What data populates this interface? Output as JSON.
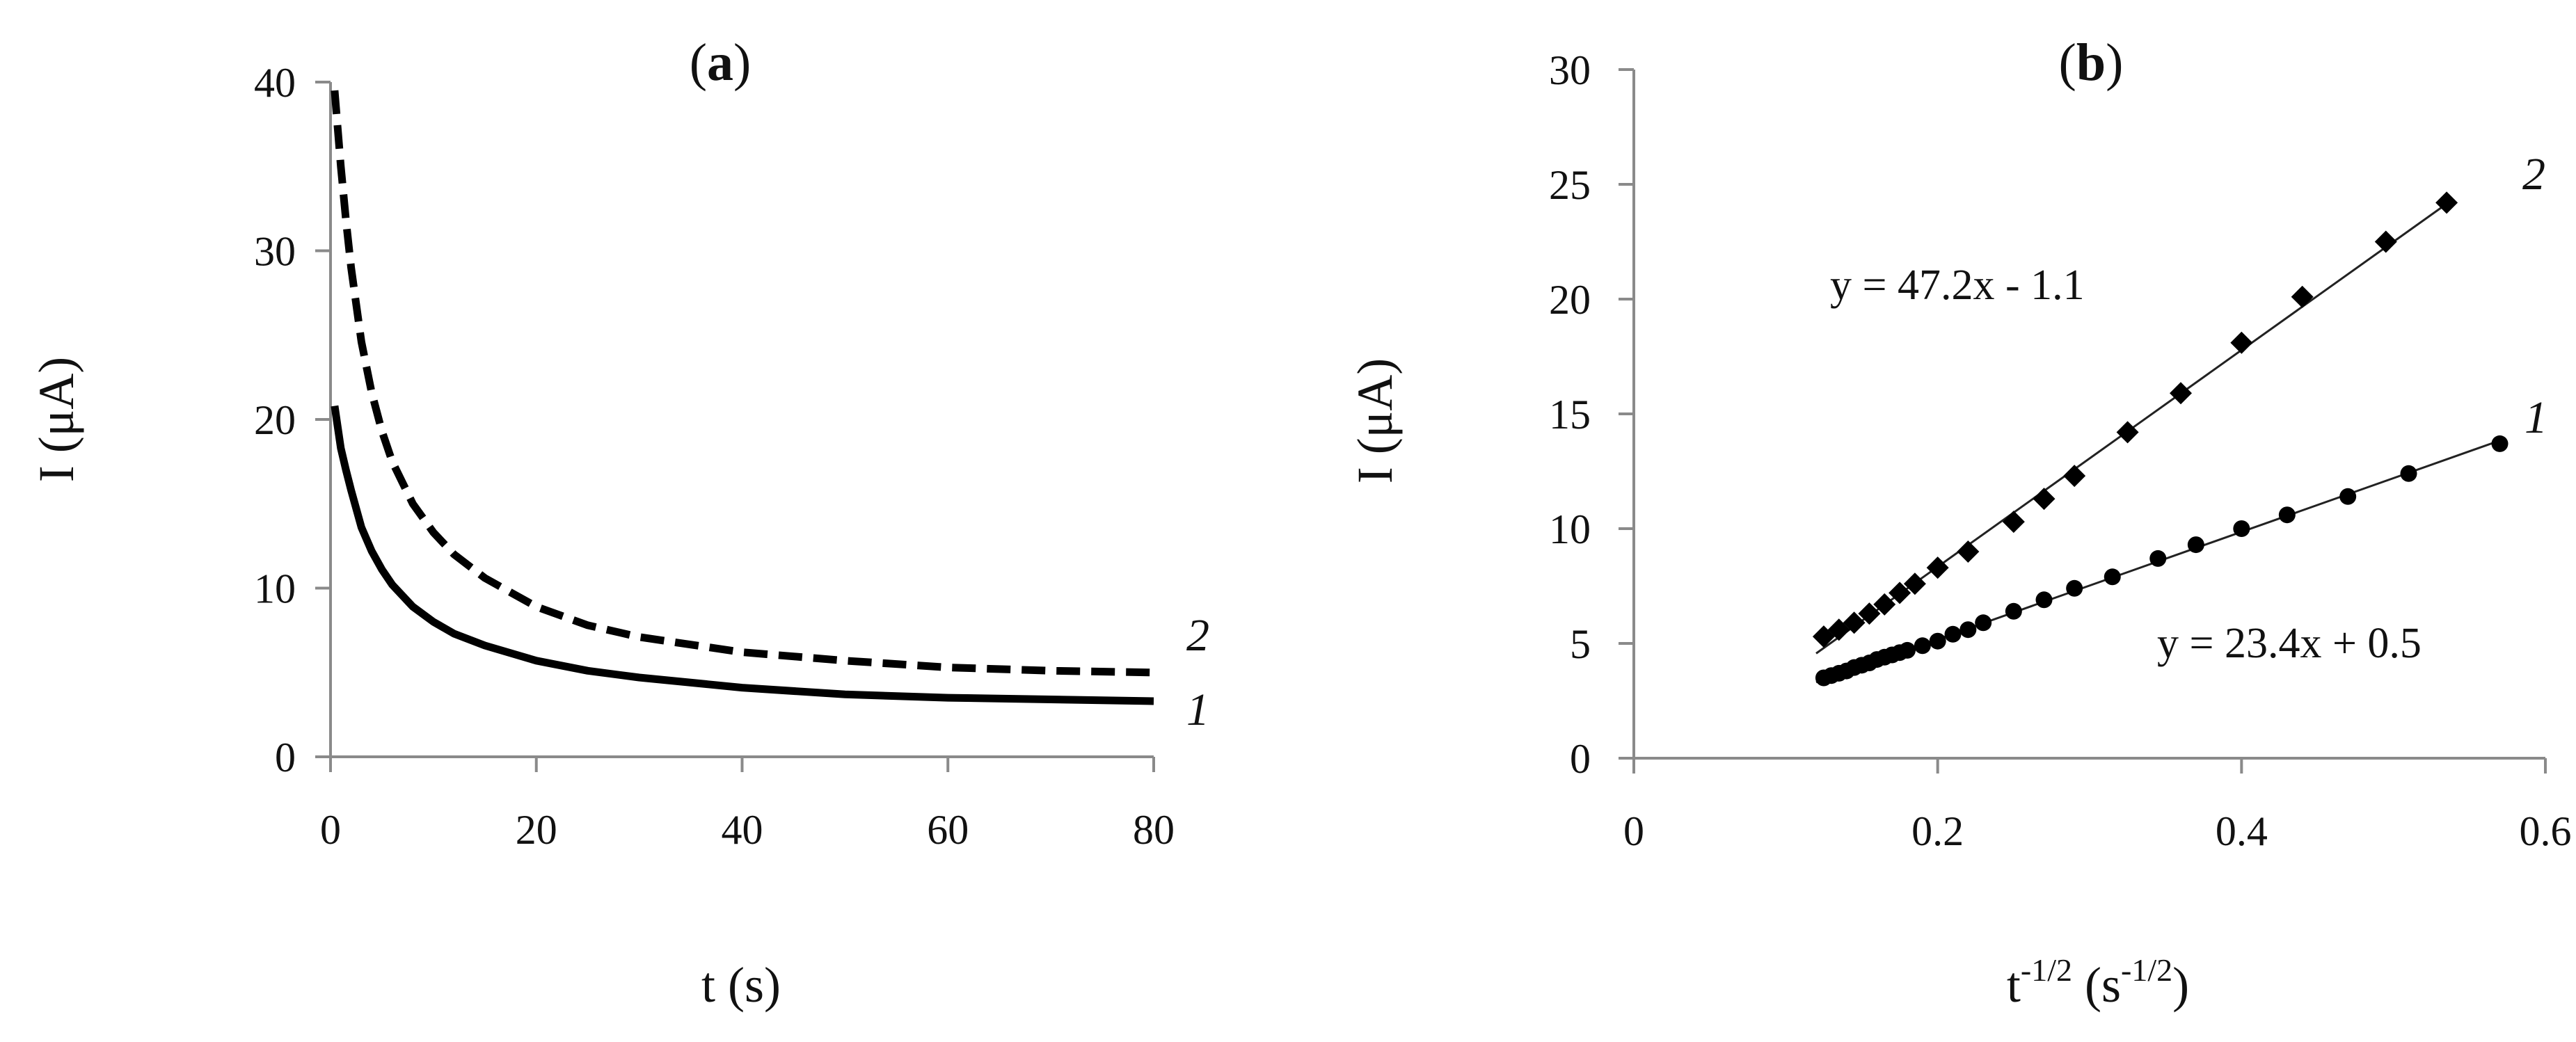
{
  "chart_data": [
    {
      "type": "line",
      "title": "(a)",
      "title_letter": "a",
      "xlabel": "t (s)",
      "ylabel": "I (μA)",
      "xlim": [
        0,
        80
      ],
      "ylim": [
        0,
        40
      ],
      "xticks": [
        "0",
        "20",
        "40",
        "60",
        "80"
      ],
      "yticks": [
        "0",
        "10",
        "20",
        "30",
        "40"
      ],
      "grid": false,
      "x": [
        0.4,
        1,
        1.5,
        2,
        3,
        4,
        5,
        6,
        8,
        10,
        12,
        15,
        20,
        25,
        30,
        40,
        50,
        60,
        70,
        80
      ],
      "series": [
        {
          "name": "1",
          "style": "solid",
          "values": [
            20.8,
            18.3,
            17.0,
            15.8,
            13.6,
            12.2,
            11.1,
            10.2,
            8.9,
            8.0,
            7.3,
            6.6,
            5.7,
            5.1,
            4.7,
            4.1,
            3.7,
            3.5,
            3.4,
            3.3
          ]
        },
        {
          "name": "2",
          "style": "dashed",
          "values": [
            39.5,
            35.0,
            31.8,
            29.0,
            24.6,
            21.6,
            19.3,
            17.5,
            15.0,
            13.3,
            12.0,
            10.6,
            8.9,
            7.8,
            7.1,
            6.2,
            5.7,
            5.3,
            5.1,
            5.0
          ]
        }
      ]
    },
    {
      "type": "scatter",
      "title": "(b)",
      "title_letter": "b",
      "xlabel": "t-1/2 (s-1/2)",
      "xlabel_parts": {
        "base": "t",
        "sup1": "-1/2",
        "mid": " (s",
        "sup2": "-1/2",
        "end": ")"
      },
      "ylabel": "I (μA)",
      "xlim": [
        0,
        0.6
      ],
      "ylim": [
        0,
        30
      ],
      "xticks": [
        "0",
        "0.2",
        "0.4",
        "0.6"
      ],
      "yticks": [
        "0",
        "5",
        "10",
        "15",
        "20",
        "25",
        "30"
      ],
      "grid": false,
      "series": [
        {
          "name": "1",
          "marker": "circle",
          "x": [
            0.125,
            0.13,
            0.135,
            0.14,
            0.145,
            0.15,
            0.155,
            0.16,
            0.165,
            0.17,
            0.175,
            0.18,
            0.19,
            0.2,
            0.21,
            0.22,
            0.23,
            0.25,
            0.27,
            0.29,
            0.315,
            0.345,
            0.37,
            0.4,
            0.43,
            0.47,
            0.51,
            0.57
          ],
          "y": [
            3.5,
            3.6,
            3.7,
            3.8,
            3.95,
            4.05,
            4.15,
            4.3,
            4.4,
            4.5,
            4.6,
            4.7,
            4.9,
            5.1,
            5.4,
            5.6,
            5.9,
            6.4,
            6.9,
            7.4,
            7.9,
            8.7,
            9.3,
            10.0,
            10.6,
            11.4,
            12.4,
            13.7
          ],
          "fit": {
            "label": "y = 23.4x + 0.5",
            "slope": 23.4,
            "intercept": 0.5,
            "x_range": [
              0.12,
              0.57
            ]
          }
        },
        {
          "name": "2",
          "marker": "diamond",
          "x": [
            0.125,
            0.135,
            0.145,
            0.155,
            0.165,
            0.175,
            0.185,
            0.2,
            0.22,
            0.25,
            0.27,
            0.29,
            0.325,
            0.36,
            0.4,
            0.44,
            0.495,
            0.535
          ],
          "y": [
            5.3,
            5.6,
            5.9,
            6.3,
            6.7,
            7.2,
            7.6,
            8.3,
            9.0,
            10.3,
            11.3,
            12.3,
            14.2,
            15.9,
            18.1,
            20.1,
            22.5,
            24.2
          ],
          "fit": {
            "label": "y = 47.2x - 1.1",
            "slope": 47.2,
            "intercept": -1.1,
            "x_range": [
              0.12,
              0.535
            ]
          }
        }
      ]
    }
  ]
}
